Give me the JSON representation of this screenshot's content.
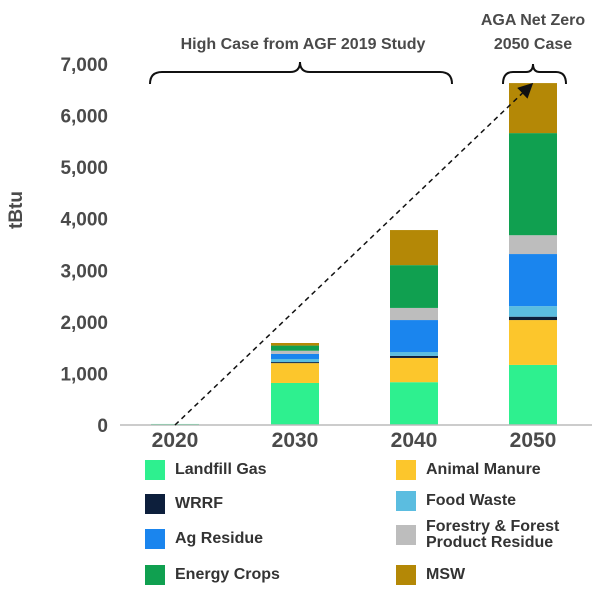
{
  "chart_data": {
    "type": "stacked-bar",
    "y_label": "tBtu",
    "annotations": [
      "High Case from AGF 2019 Study",
      "AGA Net Zero",
      "2050 Case"
    ],
    "categories": [
      "2020",
      "2030",
      "2040",
      "2050"
    ],
    "ylim": [
      0,
      7000
    ],
    "yticks": [
      0,
      {
        "value": 1000,
        "label": "1,000"
      },
      {
        "value": 2000,
        "label": "2,000"
      },
      {
        "value": 3000,
        "label": "3,000"
      },
      {
        "value": 4000,
        "label": "4,000"
      },
      {
        "value": 5000,
        "label": "5,000"
      },
      {
        "value": 6000,
        "label": "6,000"
      },
      {
        "value": 7000,
        "label": "7,000"
      }
    ],
    "series": [
      {
        "name": "Landfill Gas",
        "color": "#2ef08f",
        "values": [
          20,
          815,
          830,
          1165
        ]
      },
      {
        "name": "Animal Manure",
        "color": "#fcc62c",
        "values": [
          0,
          385,
          470,
          870
        ]
      },
      {
        "name": "WRRF",
        "color": "#0d1f3c",
        "values": [
          0,
          20,
          40,
          65
        ]
      },
      {
        "name": "Food Waste",
        "color": "#5bbde0",
        "values": [
          0,
          60,
          75,
          205
        ]
      },
      {
        "name": "Ag Residue",
        "color": "#1a85ee",
        "values": [
          0,
          100,
          620,
          1010
        ]
      },
      {
        "name": "Forestry & Forest Product Residue",
        "color": "#bdbdbd",
        "values": [
          0,
          60,
          235,
          365
        ]
      },
      {
        "name": "Energy Crops",
        "color": "#10a050",
        "values": [
          0,
          100,
          830,
          1980
        ]
      },
      {
        "name": "MSW",
        "color": "#b48806",
        "values": [
          0,
          50,
          680,
          970
        ]
      }
    ]
  }
}
